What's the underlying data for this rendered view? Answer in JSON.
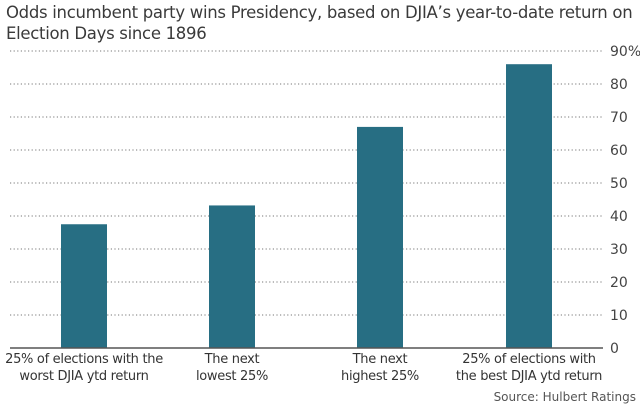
{
  "chart_data": {
    "type": "bar",
    "title": "Odds incumbent party wins Presidency, based on DJIA’s year-to-date return on Election Days since 1896",
    "categories": [
      [
        "25% of elections with the",
        "worst DJIA ytd return"
      ],
      [
        "The next",
        "lowest 25%"
      ],
      [
        "The next",
        "highest 25%"
      ],
      [
        "25% of elections with",
        "the best DJIA ytd return"
      ]
    ],
    "values": [
      37.5,
      43.2,
      67,
      86
    ],
    "ylim": [
      0,
      90
    ],
    "yticks": [
      "0",
      "10",
      "20",
      "30",
      "40",
      "50",
      "60",
      "70",
      "80",
      "90%"
    ],
    "y_axis_side": "right",
    "grid": "dotted horizontal",
    "bar_color": "#276e83",
    "source": "Source: Hulbert Ratings"
  }
}
